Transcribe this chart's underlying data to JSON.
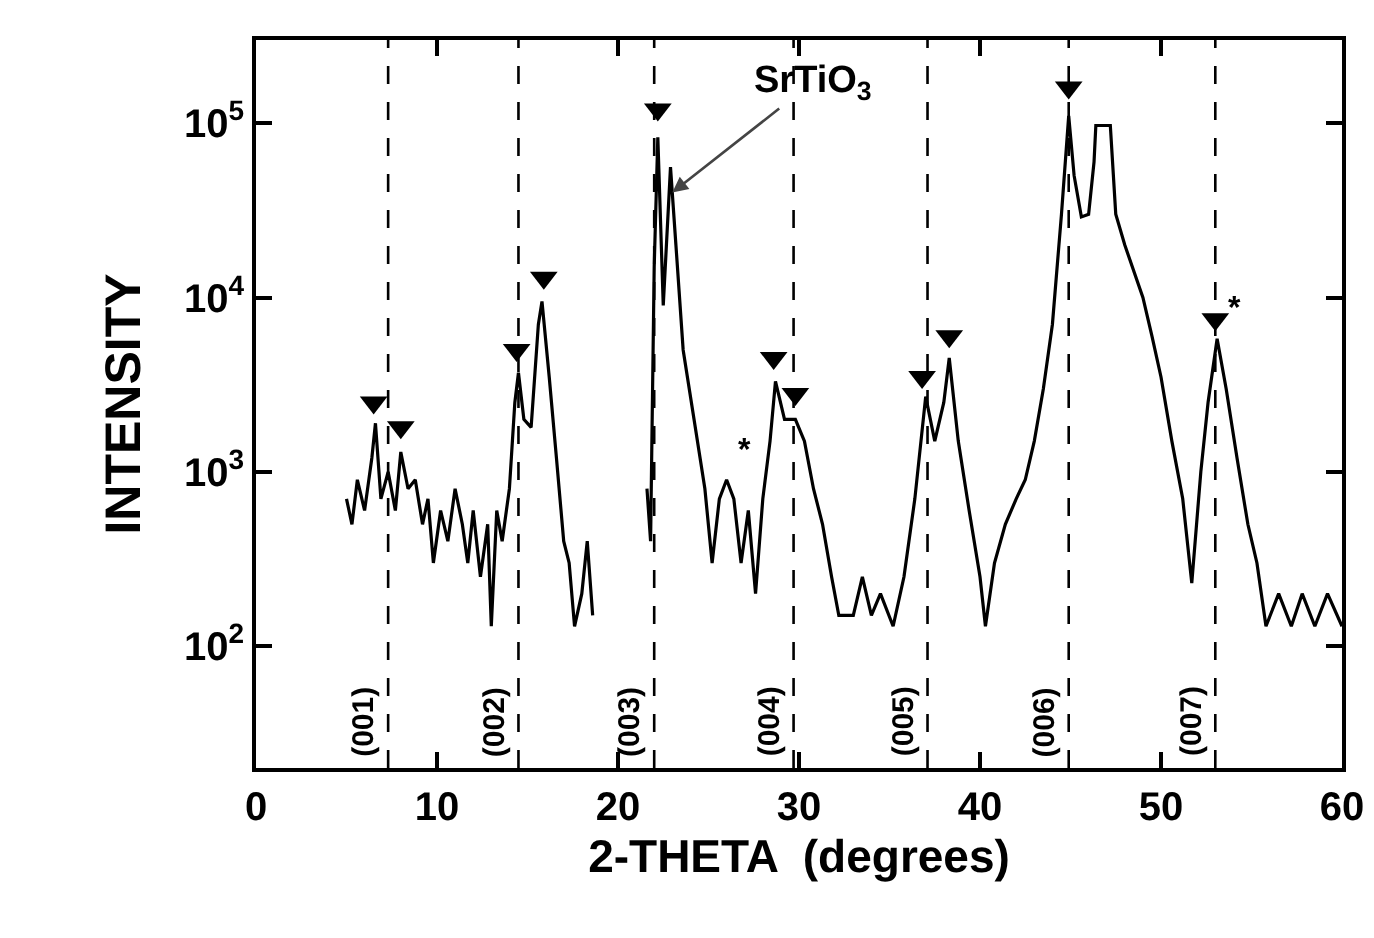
{
  "chart_data": {
    "type": "line",
    "xlabel": "2-THETA  (degrees)",
    "ylabel": "INTENSITY",
    "log": "y",
    "grid": false,
    "marker": "none",
    "line_style": "solid",
    "xlim": [
      0,
      60
    ],
    "xticks": [
      0,
      10,
      20,
      30,
      40,
      50,
      60
    ],
    "ylim": [
      20,
      300000
    ],
    "yticks": [
      {
        "value": 100,
        "label": "10$^{2}$"
      },
      {
        "value": 1000,
        "label": "10$^{3}$"
      },
      {
        "value": 10000,
        "label": "10$^{4}$"
      },
      {
        "value": 100000,
        "label": "10$^{5}$"
      }
    ],
    "series": [
      {
        "color": "#000000",
        "x": [
          5.0,
          5.3,
          5.6,
          6.0,
          6.4,
          6.6,
          6.9,
          7.3,
          7.7,
          8.0,
          8.4,
          8.8,
          9.2,
          9.5,
          9.8,
          10.2,
          10.6,
          11.0,
          11.4,
          11.7,
          12.0,
          12.4,
          12.8,
          13.0,
          13.3,
          13.6,
          14.0,
          14.3,
          14.5,
          14.8,
          15.2,
          15.6,
          15.8,
          16.2,
          16.6,
          17.0,
          17.3,
          17.6,
          18.0,
          18.3,
          18.6,
          20.0,
          21.6,
          21.8,
          22.0,
          22.2,
          22.5,
          22.9,
          23.2,
          23.6,
          24.2,
          24.8,
          25.2,
          25.6,
          26.0,
          26.4,
          26.8,
          27.2,
          27.6,
          28.0,
          28.4,
          28.7,
          29.2,
          29.8,
          30.3,
          30.8,
          31.3,
          31.8,
          32.2,
          33.0,
          33.5,
          34.0,
          34.5,
          35.2,
          35.8,
          36.4,
          37.0,
          37.5,
          38.0,
          38.3,
          38.8,
          39.4,
          40.0,
          40.3,
          40.8,
          41.4,
          42.0,
          42.5,
          43.0,
          43.5,
          44.0,
          44.5,
          44.9,
          45.2,
          45.6,
          46.0,
          46.3,
          46.4,
          47.2,
          47.5,
          48.0,
          49.0,
          49.5,
          50.0,
          50.6,
          51.2,
          51.7,
          52.2,
          52.6,
          53.1,
          53.6,
          54.2,
          54.8,
          55.3,
          55.8,
          56.5,
          57.2,
          57.8,
          58.5,
          59.2,
          60.0
        ],
        "values": [
          700,
          500,
          900,
          600,
          1200,
          1900,
          700,
          1000,
          600,
          1300,
          800,
          900,
          500,
          700,
          300,
          600,
          400,
          800,
          500,
          300,
          600,
          250,
          500,
          130,
          600,
          400,
          800,
          2500,
          3700,
          2000,
          1800,
          7000,
          9500,
          3500,
          1200,
          400,
          300,
          130,
          200,
          400,
          150,
          null,
          800,
          400,
          15000,
          83000,
          9000,
          56000,
          20000,
          5000,
          2000,
          800,
          300,
          700,
          900,
          700,
          300,
          600,
          200,
          700,
          1500,
          3300,
          2000,
          2000,
          1500,
          800,
          500,
          250,
          150,
          150,
          250,
          150,
          200,
          130,
          250,
          700,
          2700,
          1500,
          2500,
          4500,
          1500,
          600,
          250,
          130,
          300,
          500,
          700,
          900,
          1500,
          3000,
          7000,
          30000,
          110000,
          50000,
          29000,
          30000,
          60000,
          97000,
          97000,
          30000,
          20000,
          10000,
          6000,
          3500,
          1500,
          700,
          230,
          1000,
          2500,
          5800,
          3000,
          1200,
          500,
          300,
          130,
          200,
          130,
          200,
          130,
          200,
          130
        ]
      },
      {
        "type": "scatter",
        "marker": "triangle",
        "color": "#000000",
        "x": [
          6.5,
          8.0,
          14.4,
          15.9,
          22.2,
          28.6,
          29.8,
          36.8,
          38.3,
          44.9,
          53.0
        ],
        "values": [
          2500,
          1800,
          5000,
          13000,
          120000,
          4500,
          2800,
          3500,
          6000,
          160000,
          7500
        ]
      }
    ],
    "ref_lines": [
      {
        "axis": "x",
        "value": 7.3,
        "line_style": "dashed"
      },
      {
        "axis": "x",
        "value": 14.5,
        "line_style": "dashed"
      },
      {
        "axis": "x",
        "value": 22.0,
        "line_style": "dashed"
      },
      {
        "axis": "x",
        "value": 29.7,
        "line_style": "dashed"
      },
      {
        "axis": "x",
        "value": 37.1,
        "line_style": "dashed"
      },
      {
        "axis": "x",
        "value": 44.9,
        "line_style": "dashed"
      },
      {
        "axis": "x",
        "value": 53.0,
        "line_style": "dashed"
      }
    ],
    "annotations": [
      {
        "text": "SrTiO$_{3}$",
        "x": 23.0,
        "y": 40000
      },
      {
        "text": "*",
        "x": 26.0,
        "y": 900
      },
      {
        "text": "*",
        "x": 53.1,
        "y": 5800
      },
      {
        "text": "(001)",
        "x": 7.3
      },
      {
        "text": "(002)",
        "x": 14.5
      },
      {
        "text": "(003)",
        "x": 22.0
      },
      {
        "text": "(004)",
        "x": 29.7
      },
      {
        "text": "(005)",
        "x": 37.1
      },
      {
        "text": "(006)",
        "x": 44.9
      },
      {
        "text": "(007)",
        "x": 53.0
      }
    ]
  }
}
